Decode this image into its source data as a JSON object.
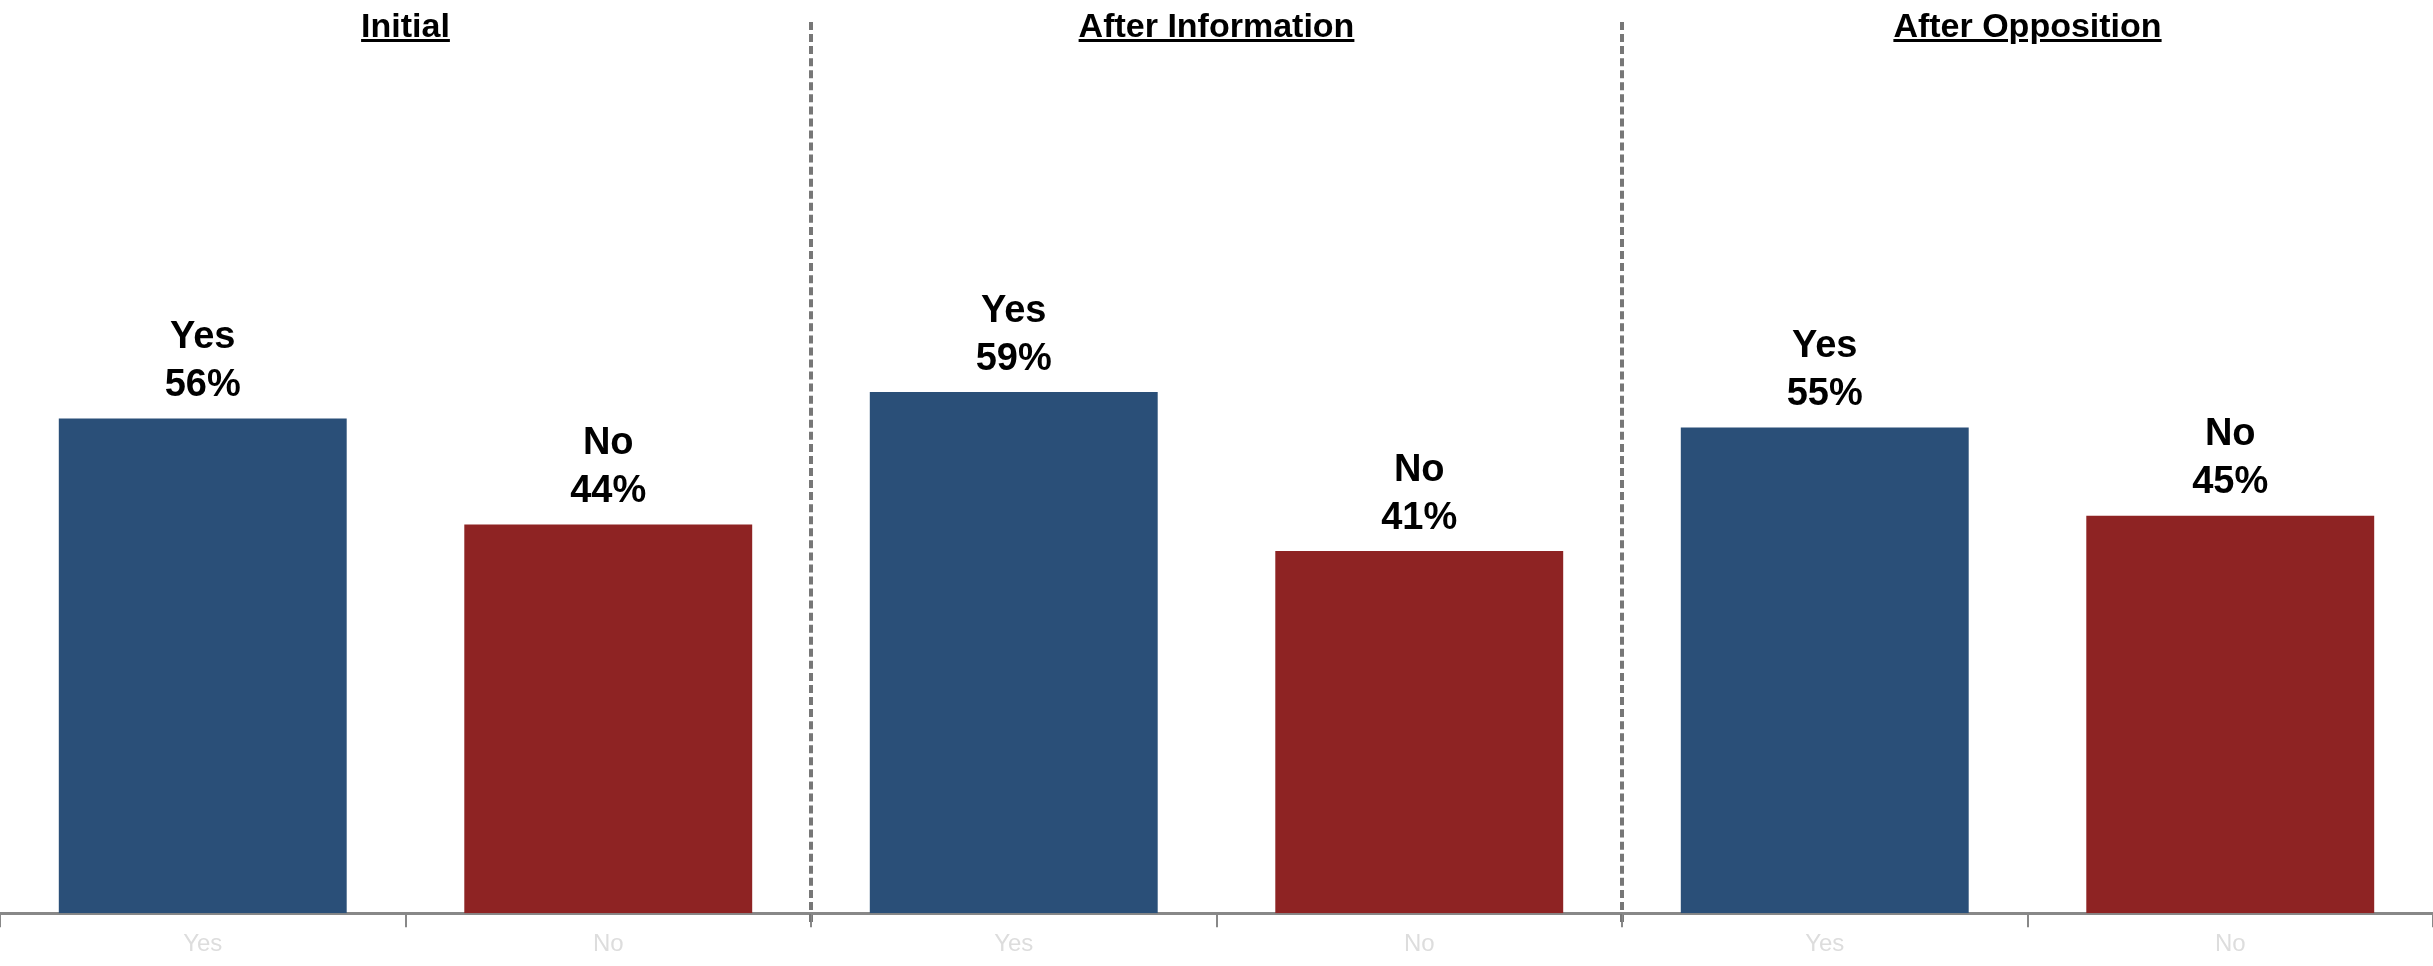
{
  "chart_data": [
    {
      "type": "bar",
      "title": "Initial",
      "categories": [
        "Yes",
        "No"
      ],
      "values": [
        56,
        44
      ],
      "colors": [
        "#2a4f78",
        "#8e2323"
      ],
      "value_labels": [
        "Yes\n56%",
        "No\n44%"
      ]
    },
    {
      "type": "bar",
      "title": "After Information",
      "categories": [
        "Yes",
        "No"
      ],
      "values": [
        59,
        41
      ],
      "colors": [
        "#2a4f78",
        "#8e2323"
      ],
      "value_labels": [
        "Yes\n59%",
        "No\n41%"
      ]
    },
    {
      "type": "bar",
      "title": "After Opposition",
      "categories": [
        "Yes",
        "No"
      ],
      "values": [
        55,
        45
      ],
      "colors": [
        "#2a4f78",
        "#8e2323"
      ],
      "value_labels": [
        "Yes\n55%",
        "No\n45%"
      ]
    }
  ]
}
